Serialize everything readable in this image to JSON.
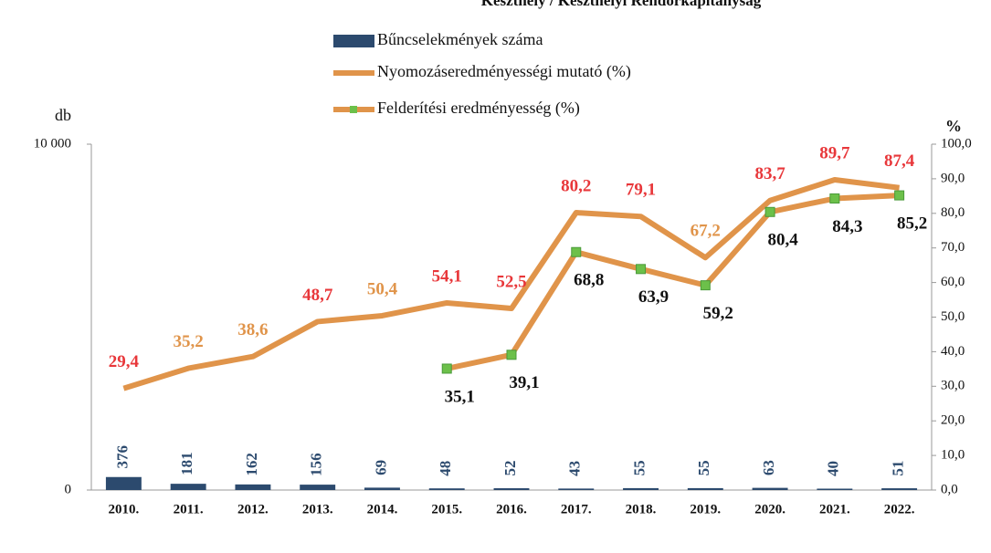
{
  "chart_data": {
    "type": "bar-line",
    "title": "Keszthely / Keszthelyi Rendőrkapitányság",
    "y_label": "db",
    "y2_label": "%",
    "categories": [
      "2010.",
      "2011.",
      "2012.",
      "2013.",
      "2014.",
      "2015.",
      "2016.",
      "2017.",
      "2018.",
      "2019.",
      "2020.",
      "2021.",
      "2022."
    ],
    "ylim": [
      0,
      10000
    ],
    "yticks": [
      0,
      {
        "value": 10000,
        "label": "10 000"
      }
    ],
    "y2lim": [
      0,
      100
    ],
    "y2ticks": [
      {
        "value": 0,
        "label": "0,0"
      },
      {
        "value": 10,
        "label": "10,0"
      },
      {
        "value": 20,
        "label": "20,0"
      },
      {
        "value": 30,
        "label": "30,0"
      },
      {
        "value": 40,
        "label": "40,0"
      },
      {
        "value": 50,
        "label": "50,0"
      },
      {
        "value": 60,
        "label": "60,0"
      },
      {
        "value": 70,
        "label": "70,0"
      },
      {
        "value": 80,
        "label": "80,0"
      },
      {
        "value": 90,
        "label": "90,0"
      },
      {
        "value": 100,
        "label": "100,0"
      }
    ],
    "series": [
      {
        "name": "Bűncselekmények száma",
        "type": "bar",
        "color": "#2c4a6e",
        "values": [
          376,
          181,
          162,
          156,
          69,
          48,
          52,
          43,
          55,
          55,
          63,
          40,
          51
        ]
      },
      {
        "name": "Nyomozáseredményességi mutató (%)",
        "type": "line",
        "axis": "y2",
        "color": "#e0944a",
        "values": [
          29.4,
          35.2,
          38.6,
          48.7,
          50.4,
          54.1,
          52.5,
          80.2,
          79.1,
          67.2,
          83.7,
          89.7,
          87.4
        ],
        "value_labels": [
          "29,4",
          "35,2",
          "38,6",
          "48,7",
          "50,4",
          "54,1",
          "52,5",
          "80,2",
          "79,1",
          "67,2",
          "83,7",
          "89,7",
          "87,4"
        ],
        "label_colors": [
          "#e8373a",
          "#e0944a",
          "#e0944a",
          "#e8373a",
          "#e0944a",
          "#e8373a",
          "#e8373a",
          "#e8373a",
          "#e8373a",
          "#e0944a",
          "#e8373a",
          "#e8373a",
          "#e8373a"
        ]
      },
      {
        "name": "Felderítési eredményesség (%)",
        "type": "line",
        "axis": "y2",
        "color": "#e0944a",
        "marker_color": "#6cc04a",
        "values": [
          null,
          null,
          null,
          null,
          null,
          35.1,
          39.1,
          68.8,
          63.9,
          59.2,
          80.4,
          84.3,
          85.2
        ],
        "value_labels": [
          null,
          null,
          null,
          null,
          null,
          "35,1",
          "39,1",
          "68,8",
          "63,9",
          "59,2",
          "80,4",
          "84,3",
          "85,2"
        ]
      }
    ]
  }
}
